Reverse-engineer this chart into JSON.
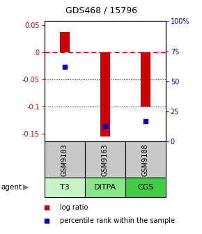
{
  "title": "GDS468 / 15796",
  "samples": [
    "GSM9183",
    "GSM9163",
    "GSM9188"
  ],
  "agents": [
    "T3",
    "DITPA",
    "CGS"
  ],
  "log_ratios": [
    0.038,
    -0.155,
    -0.1
  ],
  "percentile_ranks": [
    62,
    13,
    17
  ],
  "bar_color": "#cc0000",
  "dot_color": "#0000cc",
  "ylim_left": [
    -0.165,
    0.058
  ],
  "left_yticks": [
    0.05,
    0.0,
    -0.05,
    -0.1,
    -0.15
  ],
  "left_yticklabels": [
    "0.05",
    "0",
    "-0.05",
    "-0.1",
    "-0.15"
  ],
  "right_yticks": [
    100,
    75,
    50,
    25,
    0
  ],
  "right_yticklabels": [
    "100%",
    "75",
    "50",
    "25",
    "0"
  ],
  "zero_line_color": "#cc0000",
  "gridline_values": [
    -0.05,
    -0.1
  ],
  "sample_box_color": "#c8c8c8",
  "agent_colors": [
    "#c8f5c8",
    "#88e888",
    "#44cc44"
  ],
  "legend_items": [
    "log ratio",
    "percentile rank within the sample"
  ],
  "fig_width": 2.9,
  "fig_height": 3.36,
  "dpi": 100
}
